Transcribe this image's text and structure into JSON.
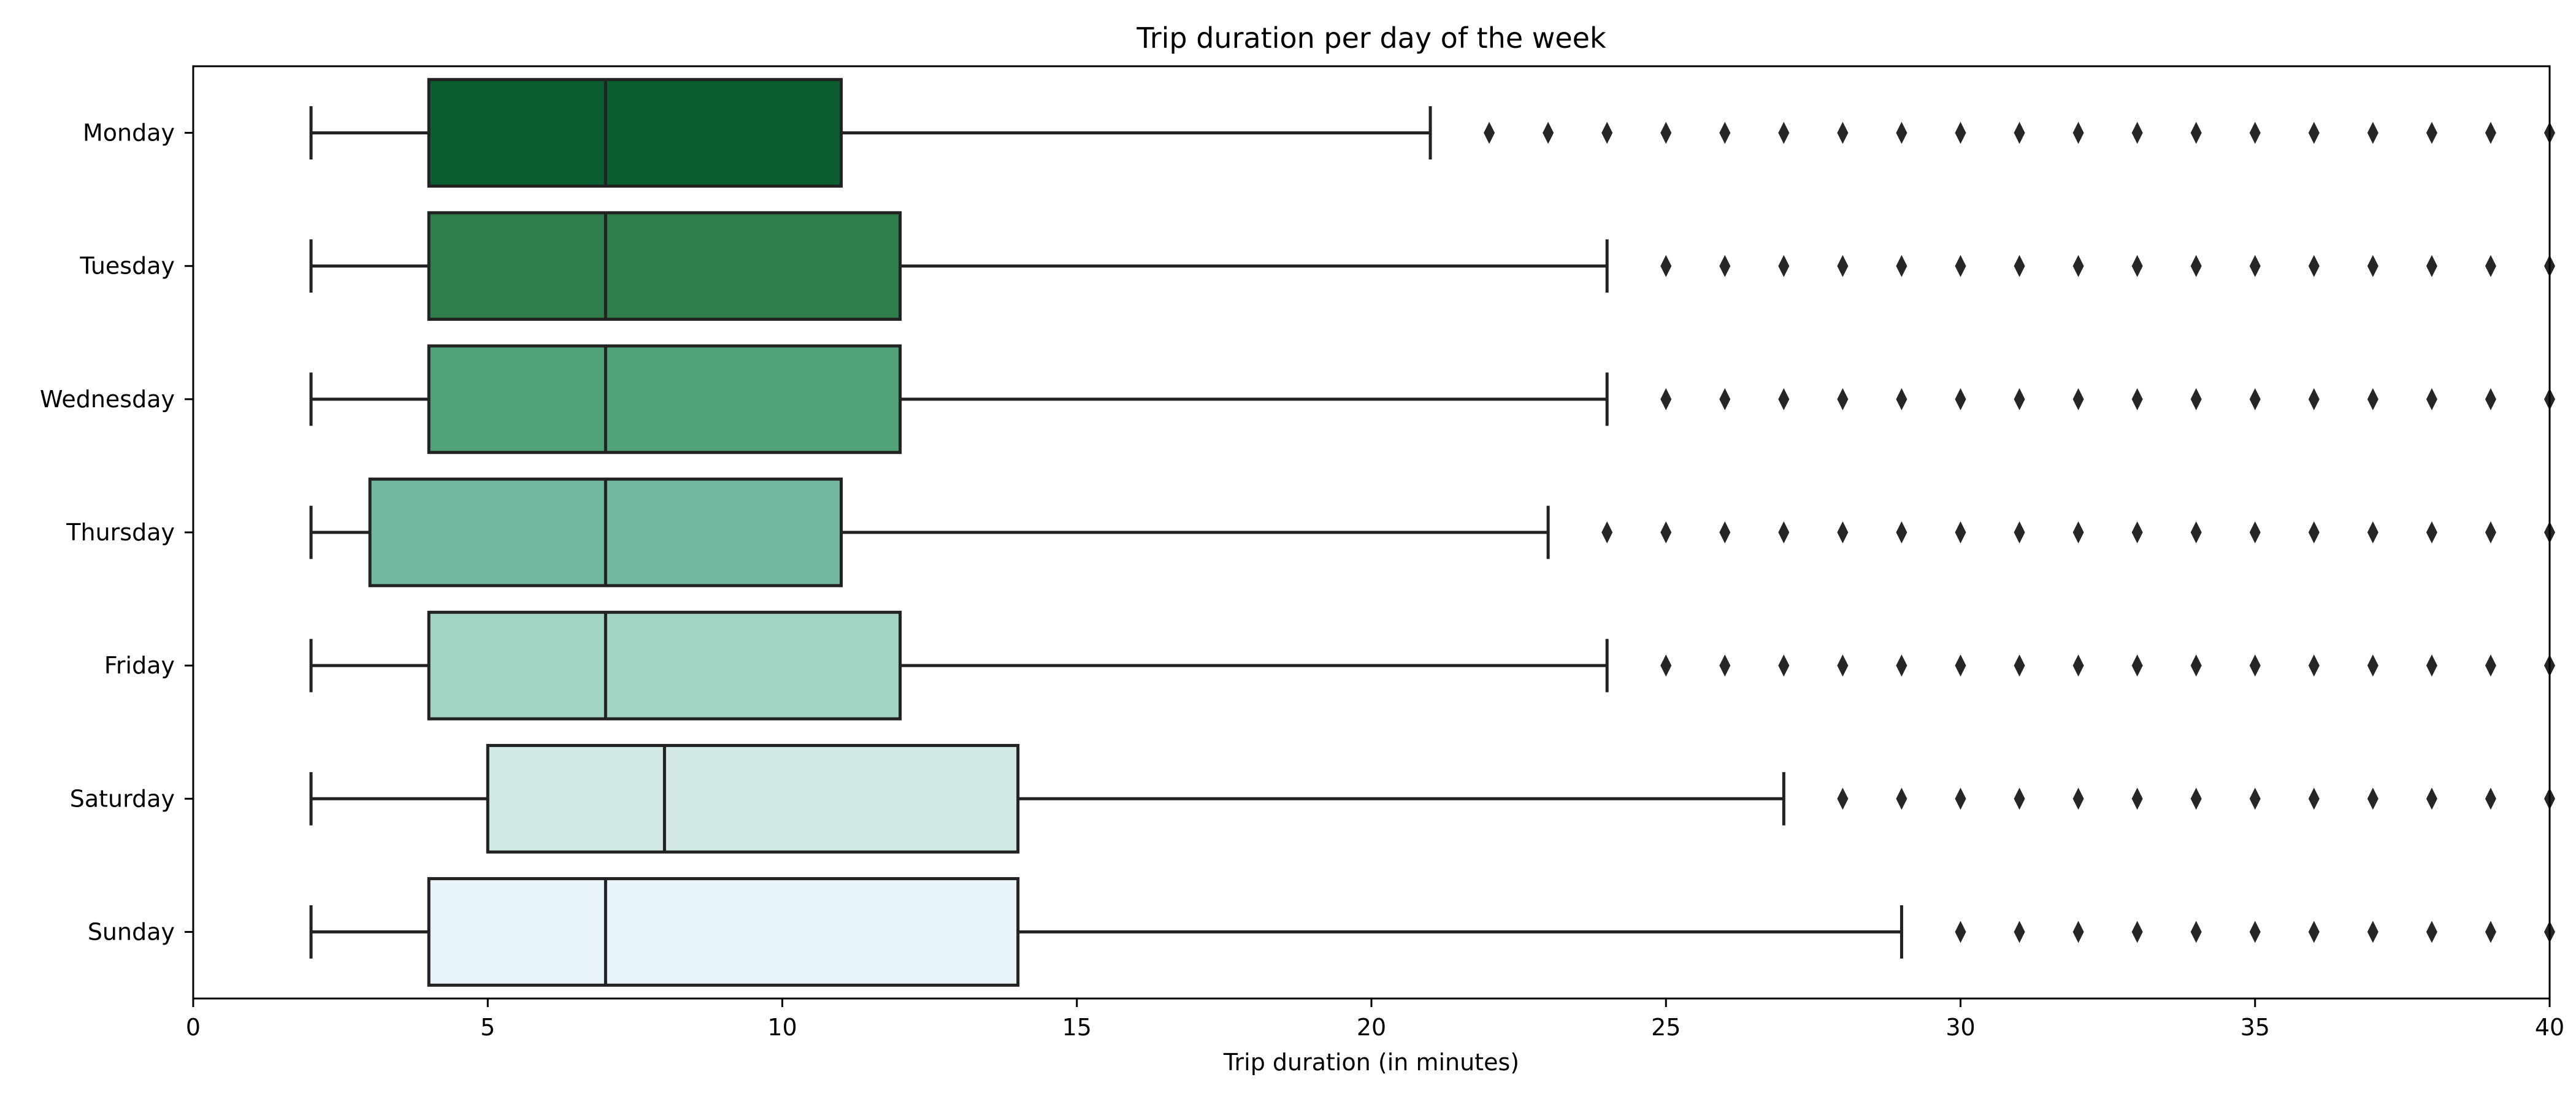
{
  "chart_data": {
    "type": "boxplot",
    "orientation": "horizontal",
    "title": "Trip duration per day of the week",
    "xlabel": "Trip duration (in minutes)",
    "ylabel": "",
    "xlim": [
      0,
      40
    ],
    "xticks": [
      0,
      5,
      10,
      15,
      20,
      25,
      30,
      35,
      40
    ],
    "grid": false,
    "categories": [
      "Monday",
      "Tuesday",
      "Wednesday",
      "Thursday",
      "Friday",
      "Saturday",
      "Sunday"
    ],
    "boxes": [
      {
        "name": "Monday",
        "whisker_low": 2,
        "q1": 4,
        "median": 7,
        "q3": 11,
        "whisker_high": 21,
        "color": "#0b5e30",
        "outliers": [
          22,
          23,
          24,
          25,
          26,
          27,
          28,
          29,
          30,
          31,
          32,
          33,
          34,
          35,
          36,
          37,
          38,
          39,
          40
        ]
      },
      {
        "name": "Tuesday",
        "whisker_low": 2,
        "q1": 4,
        "median": 7,
        "q3": 12,
        "whisker_high": 24,
        "color": "#2e7d4a",
        "outliers": [
          25,
          26,
          27,
          28,
          29,
          30,
          31,
          32,
          33,
          34,
          35,
          36,
          37,
          38,
          39,
          40
        ]
      },
      {
        "name": "Wednesday",
        "whisker_low": 2,
        "q1": 4,
        "median": 7,
        "q3": 12,
        "whisker_high": 24,
        "color": "#4fa377",
        "outliers": [
          25,
          26,
          27,
          28,
          29,
          30,
          31,
          32,
          33,
          34,
          35,
          36,
          37,
          38,
          39,
          40
        ]
      },
      {
        "name": "Thursday",
        "whisker_low": 2,
        "q1": 3,
        "median": 7,
        "q3": 11,
        "whisker_high": 23,
        "color": "#72b8a0",
        "outliers": [
          24,
          25,
          26,
          27,
          28,
          29,
          30,
          31,
          32,
          33,
          34,
          35,
          36,
          37,
          38,
          39,
          40
        ]
      },
      {
        "name": "Friday",
        "whisker_low": 2,
        "q1": 4,
        "median": 7,
        "q3": 12,
        "whisker_high": 24,
        "color": "#a3d3c5",
        "outliers": [
          25,
          26,
          27,
          28,
          29,
          30,
          31,
          32,
          33,
          34,
          35,
          36,
          37,
          38,
          39,
          40
        ]
      },
      {
        "name": "Saturday",
        "whisker_low": 2,
        "q1": 5,
        "median": 8,
        "q3": 14,
        "whisker_high": 27,
        "color": "#d2e8e4",
        "outliers": [
          28,
          29,
          30,
          31,
          32,
          33,
          34,
          35,
          36,
          37,
          38,
          39,
          40
        ]
      },
      {
        "name": "Sunday",
        "whisker_low": 2,
        "q1": 4,
        "median": 7,
        "q3": 14,
        "whisker_high": 29,
        "color": "#e8f3f7",
        "outliers": [
          30,
          31,
          32,
          33,
          34,
          35,
          36,
          37,
          38,
          39,
          40
        ]
      }
    ]
  }
}
